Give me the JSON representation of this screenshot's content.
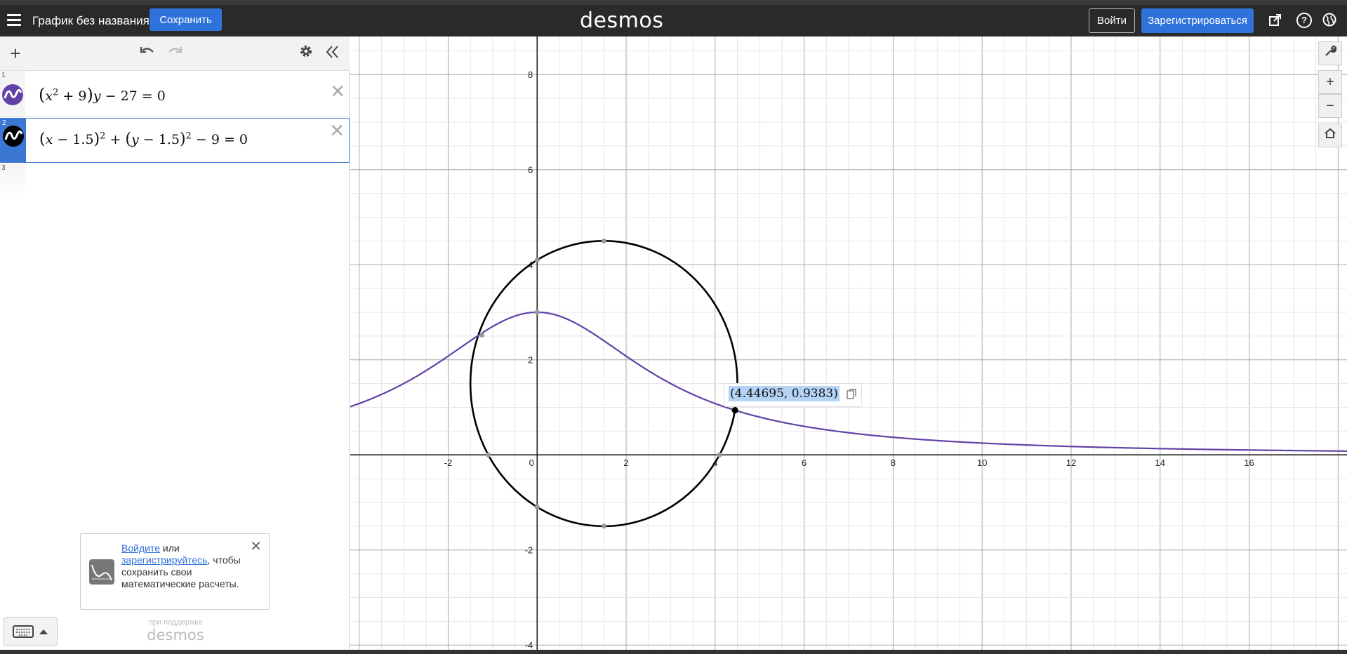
{
  "header": {
    "graph_title": "График без названия",
    "save_label": "Сохранить",
    "logo": "desmos",
    "login_label": "Войти",
    "signup_label": "Зарегистрироваться",
    "icons": [
      "share-icon",
      "help-icon",
      "language-icon"
    ]
  },
  "toolbar": {
    "add_icon": "plus-icon",
    "undo_icon": "undo-icon",
    "redo_icon": "redo-icon",
    "settings_icon": "gear-icon",
    "collapse_icon": "double-chevron-left-icon"
  },
  "expressions": [
    {
      "index": "1",
      "color": "#6042a6",
      "latex": "(x^2+9)y-27=0"
    },
    {
      "index": "2",
      "color": "#000000",
      "latex": "(x-1.5)^2+(y-1.5)^2-9=0"
    },
    {
      "index": "3"
    }
  ],
  "promo": {
    "login_link": "Войдите",
    "or_text": " или ",
    "signup_link": "зарегистрируйтесь",
    "rest_text": ", чтобы сохранить свои математические расчеты."
  },
  "powered": {
    "small": "при поддержке",
    "logo": "desmos"
  },
  "graph": {
    "x_range": [
      -4.2,
      18.2
    ],
    "y_range": [
      -4.1,
      8.8
    ],
    "x_ticks": [
      "-2",
      "0",
      "2",
      "4",
      "6",
      "8",
      "10",
      "12",
      "14",
      "16"
    ],
    "y_ticks": [
      "-4",
      "-2",
      "2",
      "4",
      "6",
      "8"
    ],
    "curve_color": "#6042a6",
    "circle_color": "#000000",
    "point_label": "(4.44695, 0.9383)",
    "point_x": 4.44695,
    "point_y": 0.9383
  }
}
